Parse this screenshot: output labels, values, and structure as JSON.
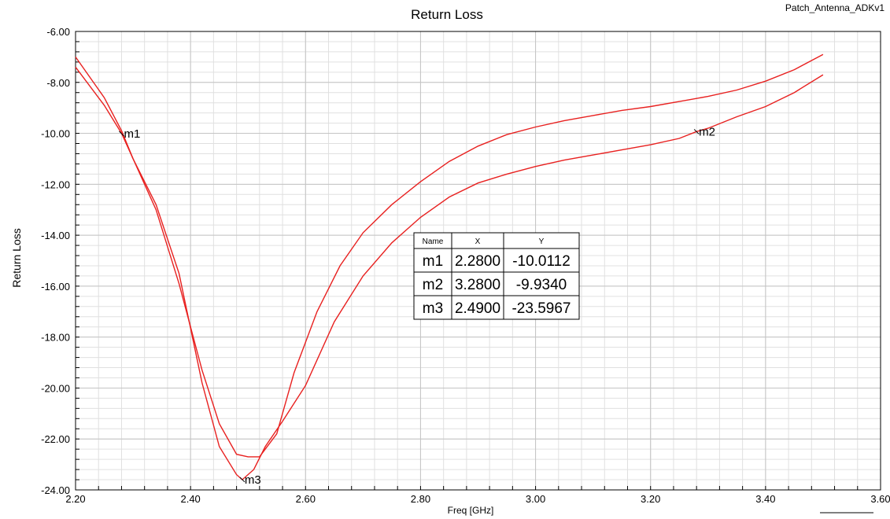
{
  "chart_data": {
    "type": "line",
    "title": "Return Loss",
    "design_name": "Patch_Antenna_ADKv1",
    "xlabel": "Freq [GHz]",
    "ylabel": "Return Loss",
    "xlim": [
      2.2,
      3.6
    ],
    "ylim": [
      -24,
      -6
    ],
    "x_ticks": [
      "2.20",
      "2.40",
      "2.60",
      "2.80",
      "3.00",
      "3.20",
      "3.40",
      "3.60"
    ],
    "y_ticks": [
      "-6.00",
      "-8.00",
      "-10.00",
      "-12.00",
      "-14.00",
      "-16.00",
      "-18.00",
      "-20.00",
      "-22.00",
      "-24.00"
    ],
    "grid": true,
    "line_color": "#e8201f",
    "series": [
      {
        "points": [
          [
            2.2,
            -7.0
          ],
          [
            2.25,
            -8.6
          ],
          [
            2.28,
            -9.9
          ],
          [
            2.3,
            -11.0
          ],
          [
            2.34,
            -13.0
          ],
          [
            2.38,
            -15.9
          ],
          [
            2.42,
            -19.3
          ],
          [
            2.45,
            -21.4
          ],
          [
            2.48,
            -22.6
          ],
          [
            2.5,
            -22.7
          ],
          [
            2.52,
            -22.7
          ],
          [
            2.55,
            -21.8
          ],
          [
            2.58,
            -19.4
          ],
          [
            2.62,
            -17.0
          ],
          [
            2.66,
            -15.2
          ],
          [
            2.7,
            -13.9
          ],
          [
            2.75,
            -12.8
          ],
          [
            2.8,
            -11.9
          ],
          [
            2.85,
            -11.1
          ],
          [
            2.9,
            -10.5
          ],
          [
            2.95,
            -10.05
          ],
          [
            3.0,
            -9.75
          ],
          [
            3.05,
            -9.5
          ],
          [
            3.1,
            -9.3
          ],
          [
            3.15,
            -9.1
          ],
          [
            3.2,
            -8.95
          ],
          [
            3.25,
            -8.75
          ],
          [
            3.3,
            -8.55
          ],
          [
            3.35,
            -8.3
          ],
          [
            3.4,
            -7.95
          ],
          [
            3.45,
            -7.5
          ],
          [
            3.5,
            -6.9
          ]
        ]
      },
      {
        "points": [
          [
            2.2,
            -7.4
          ],
          [
            2.25,
            -8.9
          ],
          [
            2.28,
            -10.0
          ],
          [
            2.3,
            -11.0
          ],
          [
            2.34,
            -12.8
          ],
          [
            2.38,
            -15.5
          ],
          [
            2.42,
            -19.8
          ],
          [
            2.45,
            -22.3
          ],
          [
            2.48,
            -23.4
          ],
          [
            2.49,
            -23.6
          ],
          [
            2.51,
            -23.2
          ],
          [
            2.53,
            -22.3
          ],
          [
            2.56,
            -21.3
          ],
          [
            2.6,
            -19.9
          ],
          [
            2.65,
            -17.4
          ],
          [
            2.7,
            -15.6
          ],
          [
            2.75,
            -14.3
          ],
          [
            2.8,
            -13.3
          ],
          [
            2.85,
            -12.5
          ],
          [
            2.9,
            -11.95
          ],
          [
            2.95,
            -11.6
          ],
          [
            3.0,
            -11.3
          ],
          [
            3.05,
            -11.05
          ],
          [
            3.1,
            -10.85
          ],
          [
            3.15,
            -10.65
          ],
          [
            3.2,
            -10.45
          ],
          [
            3.25,
            -10.2
          ],
          [
            3.28,
            -9.93
          ],
          [
            3.3,
            -9.8
          ],
          [
            3.35,
            -9.35
          ],
          [
            3.4,
            -8.95
          ],
          [
            3.45,
            -8.4
          ],
          [
            3.5,
            -7.7
          ]
        ]
      }
    ],
    "markers": [
      {
        "name": "m1",
        "x": 2.28,
        "y": -10.0112
      },
      {
        "name": "m2",
        "x": 3.28,
        "y": -9.934
      },
      {
        "name": "m3",
        "x": 2.49,
        "y": -23.5967
      }
    ],
    "marker_table": {
      "headers": [
        "Name",
        "X",
        "Y"
      ],
      "rows": [
        [
          "m1",
          "2.2800",
          "-10.0112"
        ],
        [
          "m2",
          "3.2800",
          "-9.9340"
        ],
        [
          "m3",
          "2.4900",
          "-23.5967"
        ]
      ]
    }
  }
}
